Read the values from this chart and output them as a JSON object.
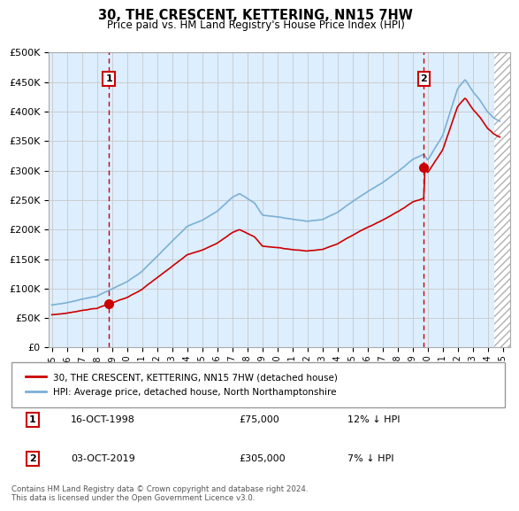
{
  "title": "30, THE CRESCENT, KETTERING, NN15 7HW",
  "subtitle": "Price paid vs. HM Land Registry's House Price Index (HPI)",
  "ylabel_ticks": [
    0,
    50000,
    100000,
    150000,
    200000,
    250000,
    300000,
    350000,
    400000,
    450000,
    500000
  ],
  "ylabel_labels": [
    "£0",
    "£50K",
    "£100K",
    "£150K",
    "£200K",
    "£250K",
    "£300K",
    "£350K",
    "£400K",
    "£450K",
    "£500K"
  ],
  "ylim": [
    0,
    500000
  ],
  "xlim_start": 1994.8,
  "xlim_end": 2025.5,
  "sale1_x": 1998.79,
  "sale1_y": 75000,
  "sale2_x": 2019.75,
  "sale2_y": 305000,
  "hpi_color": "#7ab0d4",
  "price_color": "#cc0000",
  "bg_color": "#ddeeff",
  "grid_color": "#c8c8c8",
  "legend_line1": "30, THE CRESCENT, KETTERING, NN15 7HW (detached house)",
  "legend_line2": "HPI: Average price, detached house, North Northamptonshire",
  "footnote": "Contains HM Land Registry data © Crown copyright and database right 2024.\nThis data is licensed under the Open Government Licence v3.0.",
  "hatch_start": 2024.42
}
